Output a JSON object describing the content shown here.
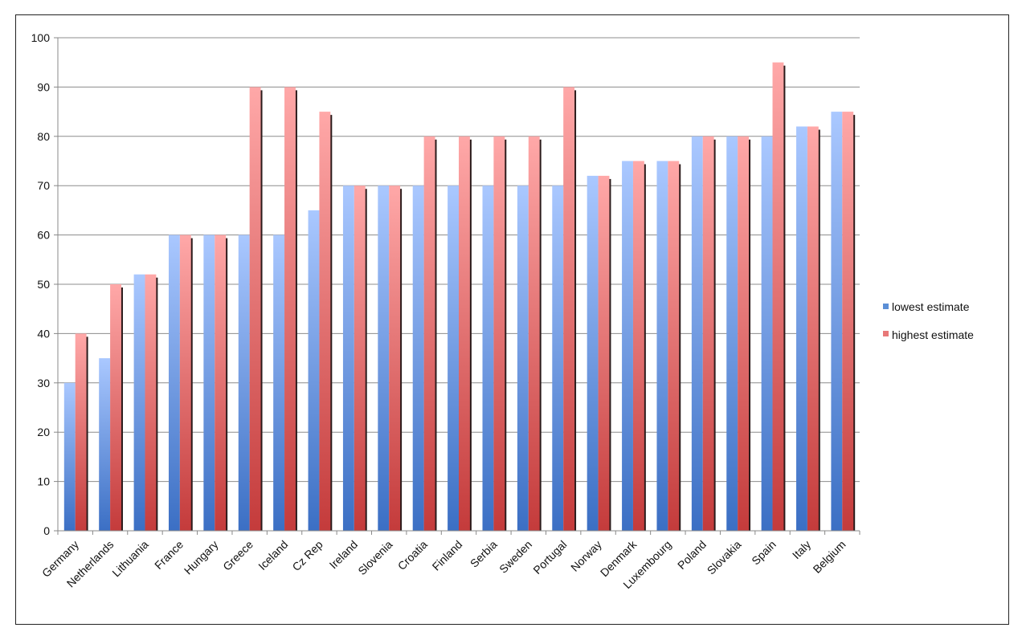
{
  "chart_data": {
    "type": "bar",
    "categories": [
      "Germany",
      "Netherlands",
      "Lithuania",
      "France",
      "Hungary",
      "Greece",
      "Iceland",
      "Cz Rep",
      "Ireland",
      "Slovenia",
      "Croatia",
      "Finland",
      "Serbia",
      "Sweden",
      "Portugal",
      "Norway",
      "Denmark",
      "Luxembourg",
      "Poland",
      "Slovakia",
      "Spain",
      "Italy",
      "Belgium"
    ],
    "series": [
      {
        "name": "lowest estimate",
        "color": "#5b8fd6",
        "values": [
          30,
          35,
          52,
          60,
          60,
          60,
          60,
          65,
          70,
          70,
          70,
          70,
          70,
          70,
          70,
          72,
          75,
          75,
          80,
          80,
          80,
          82,
          85
        ]
      },
      {
        "name": "highest estimate",
        "color": "#d65a5a",
        "values": [
          40,
          50,
          52,
          60,
          60,
          90,
          90,
          85,
          70,
          70,
          80,
          80,
          80,
          80,
          90,
          72,
          75,
          75,
          80,
          80,
          95,
          82,
          85
        ]
      }
    ],
    "ylim": [
      0,
      100
    ],
    "yticks": [
      "0",
      "10",
      "20",
      "30",
      "40",
      "50",
      "60",
      "70",
      "80",
      "90",
      "100"
    ],
    "grid": true,
    "legend": "right"
  }
}
